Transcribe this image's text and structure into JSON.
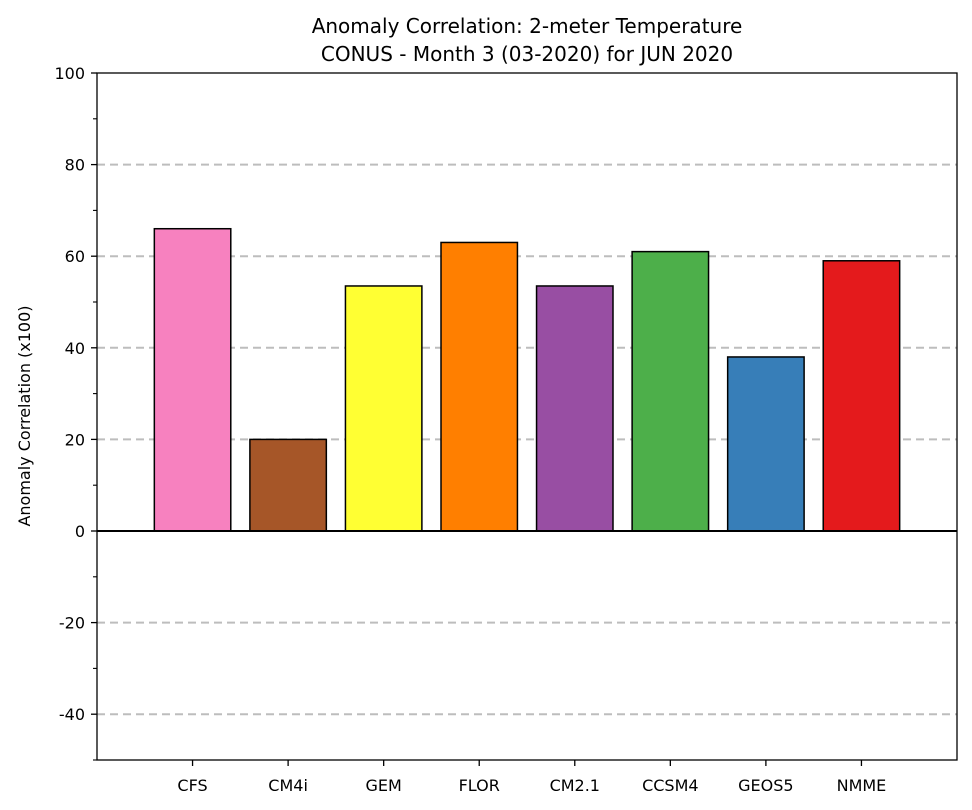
{
  "chart_data": {
    "type": "bar",
    "title_line1": "Anomaly Correlation: 2-meter Temperature",
    "title_line2": "CONUS - Month 3 (03-2020) for JUN 2020",
    "xlabel": "",
    "ylabel": "Anomaly Correlation (x100)",
    "ylim": [
      -50,
      100
    ],
    "yticks": [
      -40,
      -20,
      0,
      20,
      40,
      60,
      80,
      100
    ],
    "y_minor_ticks": [
      -50,
      -30,
      -10,
      10,
      30,
      50,
      70,
      90
    ],
    "grid_lines": [
      -40,
      -20,
      20,
      40,
      60,
      80
    ],
    "grid": true,
    "categories": [
      "CFS",
      "CM4i",
      "GEM",
      "FLOR",
      "CM2.1",
      "CCSM4",
      "GEOS5",
      "NMME"
    ],
    "values": [
      66,
      20,
      53.5,
      63,
      53.5,
      61,
      38,
      59
    ],
    "colors": [
      "#f781bf",
      "#a65628",
      "#ffff33",
      "#ff7f00",
      "#984ea3",
      "#4daf4a",
      "#377eb8",
      "#e41a1c"
    ]
  }
}
